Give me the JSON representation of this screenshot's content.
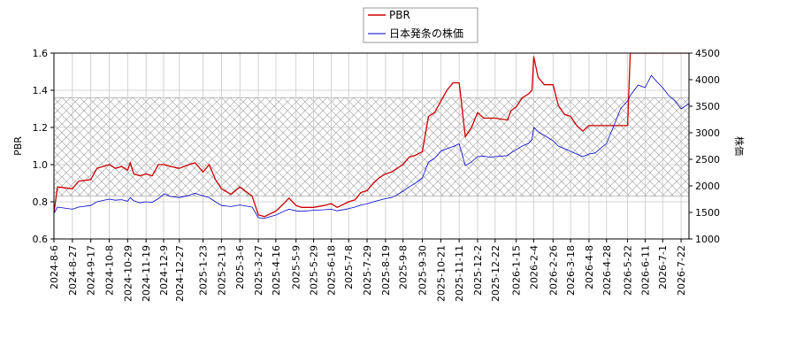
{
  "chart_data": {
    "type": "line",
    "xlabel": "",
    "y_left_label": "PBR",
    "y_right_label": "株価",
    "y_left_range": [
      0.6,
      1.6
    ],
    "y_right_range": [
      1000,
      4500
    ],
    "y_left_ticks": [
      "0.6",
      "0.8",
      "1.0",
      "1.2",
      "1.4",
      "1.6"
    ],
    "y_right_ticks": [
      "1000",
      "1500",
      "2000",
      "2500",
      "3000",
      "3500",
      "4000",
      "4500"
    ],
    "x_ticks": [
      "2024-8-6",
      "2024-8-27",
      "2024-9-17",
      "2024-10-8",
      "2024-10-29",
      "2024-11-19",
      "2024-12-9",
      "2024-12-27",
      "2025-1-23",
      "2025-2-13",
      "2025-3-6",
      "2025-3-27",
      "2025-4-16",
      "2025-5-9",
      "2025-5-29",
      "2025-6-18",
      "2025-7-8",
      "2025-7-29",
      "2025-8-19",
      "2025-9-8",
      "2025-9-30",
      "2025-10-21",
      "2025-11-11",
      "2025-12-2",
      "2025-12-22",
      "2026-1-15",
      "2026-2-4",
      "2026-2-26",
      "2026-3-18",
      "2026-4-8",
      "2026-4-28",
      "2026-5-22",
      "2026-6-11",
      "2026-7-1",
      "2026-7-22"
    ],
    "grid": true,
    "legend": "top-center",
    "hatched_band": {
      "axis": "left",
      "range": [
        0.83,
        1.36
      ]
    },
    "series": [
      {
        "name": "PBR",
        "axis": "left",
        "color": "#cc0000",
        "points": [
          [
            "2024-8-6",
            0.74
          ],
          [
            "2024-8-10",
            0.88
          ],
          [
            "2024-8-27",
            0.87
          ],
          [
            "2024-9-3",
            0.91
          ],
          [
            "2024-9-17",
            0.92
          ],
          [
            "2024-9-24",
            0.98
          ],
          [
            "2024-10-8",
            1.0
          ],
          [
            "2024-10-15",
            0.98
          ],
          [
            "2024-10-22",
            0.99
          ],
          [
            "2024-10-29",
            0.97
          ],
          [
            "2024-11-1",
            1.01
          ],
          [
            "2024-11-5",
            0.95
          ],
          [
            "2024-11-12",
            0.94
          ],
          [
            "2024-11-19",
            0.95
          ],
          [
            "2024-11-26",
            0.94
          ],
          [
            "2024-12-3",
            1.0
          ],
          [
            "2024-12-10",
            1.0
          ],
          [
            "2024-12-17",
            0.99
          ],
          [
            "2024-12-27",
            0.98
          ],
          [
            "2025-1-7",
            1.0
          ],
          [
            "2025-1-14",
            1.01
          ],
          [
            "2025-1-23",
            0.96
          ],
          [
            "2025-1-30",
            1.0
          ],
          [
            "2025-2-6",
            0.92
          ],
          [
            "2025-2-13",
            0.87
          ],
          [
            "2025-2-24",
            0.84
          ],
          [
            "2025-3-6",
            0.88
          ],
          [
            "2025-3-20",
            0.83
          ],
          [
            "2025-3-27",
            0.73
          ],
          [
            "2025-4-3",
            0.72
          ],
          [
            "2025-4-16",
            0.75
          ],
          [
            "2025-4-25",
            0.79
          ],
          [
            "2025-5-1",
            0.82
          ],
          [
            "2025-5-9",
            0.78
          ],
          [
            "2025-5-15",
            0.77
          ],
          [
            "2025-5-29",
            0.77
          ],
          [
            "2025-6-10",
            0.78
          ],
          [
            "2025-6-18",
            0.79
          ],
          [
            "2025-6-25",
            0.77
          ],
          [
            "2025-7-8",
            0.8
          ],
          [
            "2025-7-15",
            0.81
          ],
          [
            "2025-7-22",
            0.85
          ],
          [
            "2025-7-29",
            0.86
          ],
          [
            "2025-8-5",
            0.9
          ],
          [
            "2025-8-12",
            0.93
          ],
          [
            "2025-8-19",
            0.95
          ],
          [
            "2025-8-26",
            0.96
          ],
          [
            "2025-9-1",
            0.98
          ],
          [
            "2025-9-8",
            1.0
          ],
          [
            "2025-9-15",
            1.04
          ],
          [
            "2025-9-22",
            1.05
          ],
          [
            "2025-9-30",
            1.07
          ],
          [
            "2025-10-7",
            1.26
          ],
          [
            "2025-10-14",
            1.28
          ],
          [
            "2025-10-21",
            1.34
          ],
          [
            "2025-10-28",
            1.4
          ],
          [
            "2025-11-4",
            1.44
          ],
          [
            "2025-11-11",
            1.44
          ],
          [
            "2025-11-18",
            1.15
          ],
          [
            "2025-11-25",
            1.2
          ],
          [
            "2025-12-2",
            1.28
          ],
          [
            "2025-12-9",
            1.25
          ],
          [
            "2025-12-16",
            1.25
          ],
          [
            "2025-12-22",
            1.25
          ],
          [
            "2026-1-5",
            1.24
          ],
          [
            "2026-1-9",
            1.29
          ],
          [
            "2026-1-15",
            1.31
          ],
          [
            "2026-1-22",
            1.36
          ],
          [
            "2026-1-29",
            1.38
          ],
          [
            "2026-2-2",
            1.4
          ],
          [
            "2026-2-4",
            1.58
          ],
          [
            "2026-2-9",
            1.47
          ],
          [
            "2026-2-16",
            1.43
          ],
          [
            "2026-2-26",
            1.43
          ],
          [
            "2026-3-4",
            1.32
          ],
          [
            "2026-3-11",
            1.27
          ],
          [
            "2026-3-18",
            1.26
          ],
          [
            "2026-3-25",
            1.21
          ],
          [
            "2026-4-1",
            1.18
          ],
          [
            "2026-4-8",
            1.21
          ],
          [
            "2026-4-15",
            1.21
          ],
          [
            "2026-4-28",
            1.21
          ],
          [
            "2026-5-8",
            1.21
          ],
          [
            "2026-5-14",
            1.21
          ],
          [
            "2026-5-22",
            1.21
          ],
          [
            "2026-5-25",
            1.6
          ],
          [
            "2026-6-11",
            1.6
          ],
          [
            "2026-7-1",
            1.6
          ],
          [
            "2026-7-22",
            1.6
          ],
          [
            "2026-7-31",
            1.6
          ]
        ]
      },
      {
        "name": "日本発条の株価",
        "axis": "right",
        "color": "#0000cc",
        "points": [
          [
            "2024-8-6",
            1480
          ],
          [
            "2024-8-10",
            1600
          ],
          [
            "2024-8-27",
            1560
          ],
          [
            "2024-9-3",
            1600
          ],
          [
            "2024-9-17",
            1630
          ],
          [
            "2024-9-24",
            1700
          ],
          [
            "2024-10-8",
            1750
          ],
          [
            "2024-10-15",
            1730
          ],
          [
            "2024-10-22",
            1740
          ],
          [
            "2024-10-29",
            1710
          ],
          [
            "2024-11-1",
            1780
          ],
          [
            "2024-11-5",
            1720
          ],
          [
            "2024-11-12",
            1680
          ],
          [
            "2024-11-19",
            1700
          ],
          [
            "2024-11-26",
            1690
          ],
          [
            "2024-12-3",
            1760
          ],
          [
            "2024-12-10",
            1850
          ],
          [
            "2024-12-17",
            1800
          ],
          [
            "2024-12-27",
            1780
          ],
          [
            "2025-1-7",
            1820
          ],
          [
            "2025-1-14",
            1860
          ],
          [
            "2025-1-23",
            1810
          ],
          [
            "2025-1-30",
            1780
          ],
          [
            "2025-2-6",
            1700
          ],
          [
            "2025-2-13",
            1630
          ],
          [
            "2025-2-24",
            1610
          ],
          [
            "2025-3-6",
            1640
          ],
          [
            "2025-3-20",
            1600
          ],
          [
            "2025-3-27",
            1400
          ],
          [
            "2025-4-3",
            1390
          ],
          [
            "2025-4-16",
            1450
          ],
          [
            "2025-4-25",
            1520
          ],
          [
            "2025-5-1",
            1560
          ],
          [
            "2025-5-9",
            1530
          ],
          [
            "2025-5-15",
            1520
          ],
          [
            "2025-5-29",
            1540
          ],
          [
            "2025-6-10",
            1550
          ],
          [
            "2025-6-18",
            1560
          ],
          [
            "2025-6-25",
            1530
          ],
          [
            "2025-7-8",
            1570
          ],
          [
            "2025-7-15",
            1600
          ],
          [
            "2025-7-22",
            1640
          ],
          [
            "2025-7-29",
            1660
          ],
          [
            "2025-8-5",
            1700
          ],
          [
            "2025-8-12",
            1730
          ],
          [
            "2025-8-19",
            1760
          ],
          [
            "2025-8-26",
            1780
          ],
          [
            "2025-9-1",
            1830
          ],
          [
            "2025-9-8",
            1900
          ],
          [
            "2025-9-15",
            1980
          ],
          [
            "2025-9-22",
            2050
          ],
          [
            "2025-9-30",
            2150
          ],
          [
            "2025-10-7",
            2450
          ],
          [
            "2025-10-14",
            2520
          ],
          [
            "2025-10-21",
            2650
          ],
          [
            "2025-10-28",
            2700
          ],
          [
            "2025-11-4",
            2740
          ],
          [
            "2025-11-11",
            2790
          ],
          [
            "2025-11-18",
            2380
          ],
          [
            "2025-11-25",
            2450
          ],
          [
            "2025-12-2",
            2550
          ],
          [
            "2025-12-9",
            2560
          ],
          [
            "2025-12-16",
            2540
          ],
          [
            "2025-12-22",
            2550
          ],
          [
            "2026-1-5",
            2570
          ],
          [
            "2026-1-9",
            2620
          ],
          [
            "2026-1-15",
            2680
          ],
          [
            "2026-1-22",
            2750
          ],
          [
            "2026-1-29",
            2800
          ],
          [
            "2026-2-2",
            2880
          ],
          [
            "2026-2-4",
            3100
          ],
          [
            "2026-2-9",
            3020
          ],
          [
            "2026-2-16",
            2950
          ],
          [
            "2026-2-26",
            2850
          ],
          [
            "2026-3-4",
            2750
          ],
          [
            "2026-3-11",
            2700
          ],
          [
            "2026-3-18",
            2650
          ],
          [
            "2026-3-25",
            2600
          ],
          [
            "2026-4-1",
            2550
          ],
          [
            "2026-4-8",
            2600
          ],
          [
            "2026-4-15",
            2620
          ],
          [
            "2026-4-28",
            2800
          ],
          [
            "2026-5-8",
            3200
          ],
          [
            "2026-5-14",
            3450
          ],
          [
            "2026-5-22",
            3600
          ],
          [
            "2026-5-25",
            3700
          ],
          [
            "2026-6-3",
            3900
          ],
          [
            "2026-6-11",
            3850
          ],
          [
            "2026-6-18",
            4080
          ],
          [
            "2026-6-25",
            3950
          ],
          [
            "2026-7-1",
            3850
          ],
          [
            "2026-7-8",
            3700
          ],
          [
            "2026-7-15",
            3600
          ],
          [
            "2026-7-22",
            3450
          ],
          [
            "2026-7-31",
            3550
          ]
        ]
      }
    ]
  }
}
